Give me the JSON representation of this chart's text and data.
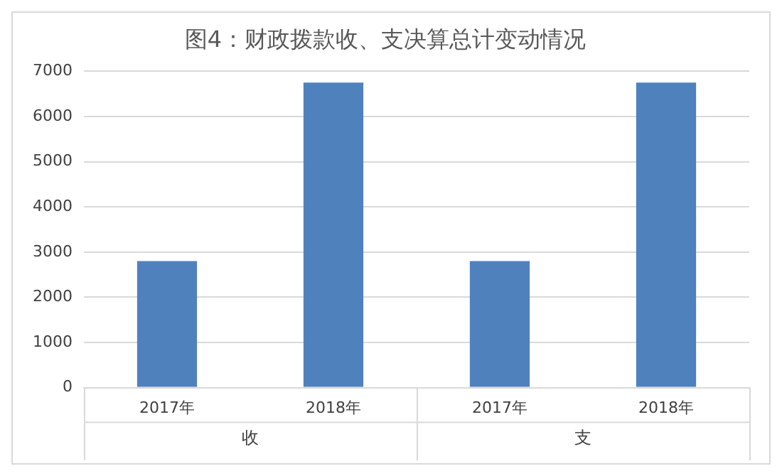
{
  "chart_data": {
    "type": "bar",
    "title": "图4：财政拨款收、支决算总计变动情况",
    "categories": [
      "2017年",
      "2018年",
      "2017年",
      "2018年"
    ],
    "values": [
      2800,
      6750,
      2800,
      6750
    ],
    "color": "#4f81bd",
    "ylim": [
      0,
      7000
    ],
    "yticks": [
      0,
      1000,
      2000,
      3000,
      4000,
      5000,
      6000,
      7000
    ],
    "grid": "y",
    "annotations": [
      "收",
      "支"
    ]
  }
}
